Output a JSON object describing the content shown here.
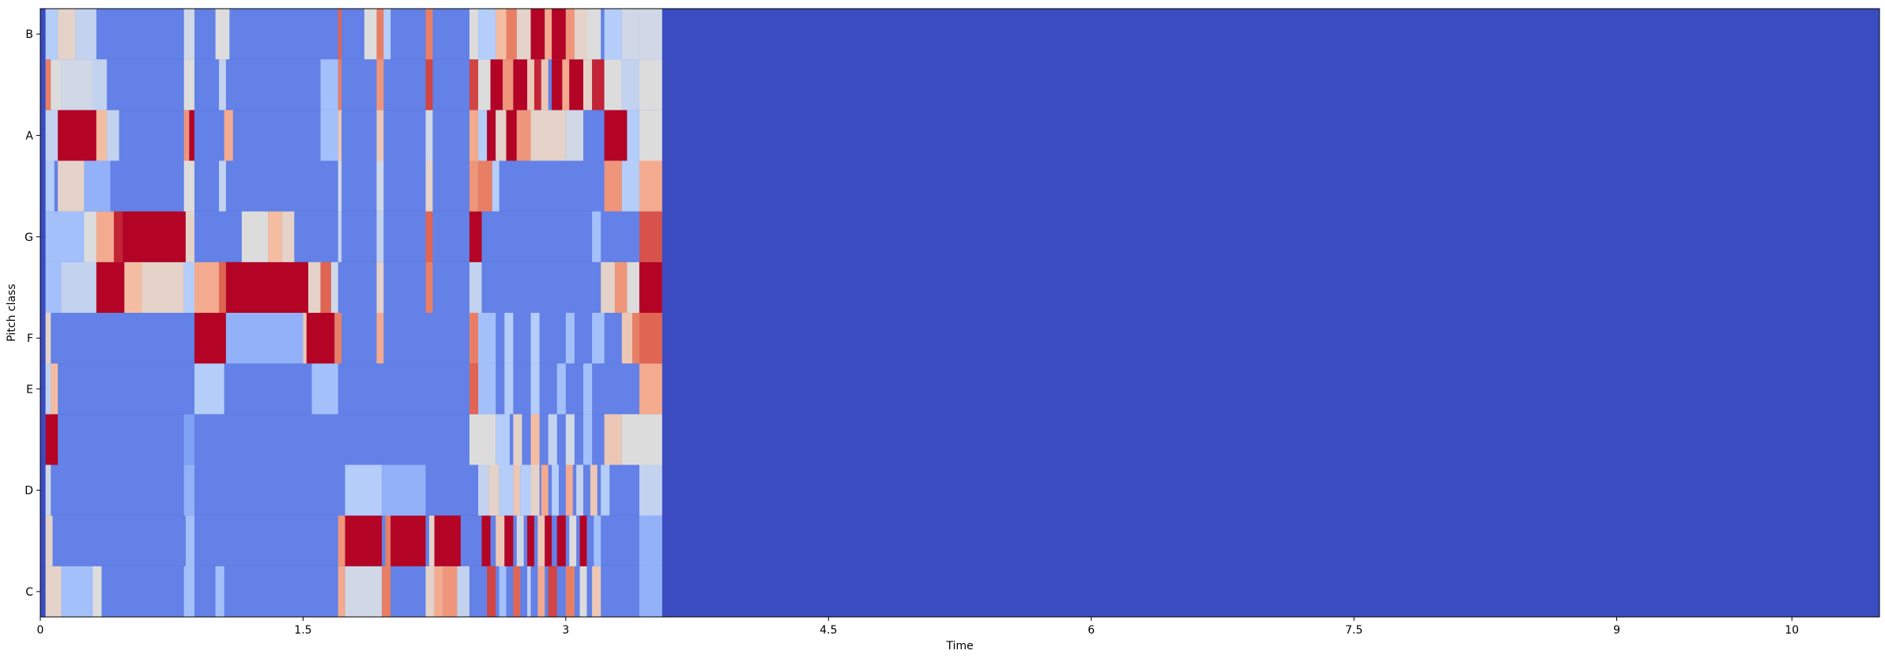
{
  "chart_data": {
    "type": "heatmap",
    "title": "",
    "xlabel": "Time",
    "ylabel": "Pitch class",
    "xlim": [
      0,
      10.5
    ],
    "x_ticks": [
      0,
      1.5,
      3,
      4.5,
      6,
      7.5,
      9,
      10
    ],
    "x_tick_labels": [
      "0",
      "1.5",
      "3",
      "4.5",
      "6",
      "7.5",
      "9",
      "10"
    ],
    "rows": [
      "C",
      "C#",
      "D",
      "D#",
      "E",
      "F",
      "F#",
      "G",
      "G#",
      "A",
      "A#",
      "B"
    ],
    "y_tick_labels": [
      {
        "row": "C",
        "label": "C"
      },
      {
        "row": "D",
        "label": "D"
      },
      {
        "row": "E",
        "label": "E"
      },
      {
        "row": "F",
        "label": "F"
      },
      {
        "row": "G",
        "label": "G"
      },
      {
        "row": "A",
        "label": "A"
      },
      {
        "row": "B",
        "label": "B"
      }
    ],
    "colormap": "coolwarm",
    "colormap_stops": [
      "#3b4cc0",
      "#7396f5",
      "#b0cbfc",
      "#dddcdc",
      "#f6b99b",
      "#e57058",
      "#b40426"
    ],
    "value_range": [
      0,
      1
    ],
    "content_end_time": 3.55,
    "background_value": 0.0,
    "cells": [
      {
        "row": "C",
        "spans": [
          [
            0.03,
            0.12,
            0.55
          ],
          [
            0.12,
            0.32,
            0.3
          ],
          [
            0.3,
            0.35,
            0.5
          ],
          [
            0.82,
            0.88,
            0.3
          ],
          [
            1.0,
            1.05,
            0.3
          ],
          [
            1.7,
            1.74,
            0.7
          ],
          [
            1.74,
            1.95,
            0.45
          ],
          [
            1.95,
            2.0,
            0.8
          ],
          [
            2.2,
            2.25,
            0.55
          ],
          [
            2.25,
            2.3,
            0.7
          ],
          [
            2.3,
            2.38,
            0.75
          ],
          [
            2.38,
            2.45,
            0.4
          ],
          [
            2.55,
            2.6,
            0.9
          ],
          [
            2.62,
            2.66,
            0.3
          ],
          [
            2.7,
            2.74,
            0.85
          ],
          [
            2.78,
            2.8,
            0.4
          ],
          [
            2.84,
            2.88,
            0.7
          ],
          [
            2.9,
            2.95,
            0.9
          ],
          [
            3.0,
            3.05,
            0.8
          ],
          [
            3.08,
            3.12,
            0.5
          ],
          [
            3.15,
            3.2,
            0.6
          ],
          [
            3.42,
            3.55,
            0.25
          ]
        ]
      },
      {
        "row": "C#",
        "spans": [
          [
            0.03,
            0.07,
            0.55
          ],
          [
            0.83,
            0.88,
            0.3
          ],
          [
            1.7,
            1.74,
            0.75
          ],
          [
            1.74,
            1.95,
            1.0
          ],
          [
            1.97,
            2.0,
            0.8
          ],
          [
            2.0,
            2.2,
            1.0
          ],
          [
            2.22,
            2.25,
            0.55
          ],
          [
            2.25,
            2.4,
            1.0
          ],
          [
            2.52,
            2.57,
            1.0
          ],
          [
            2.6,
            2.65,
            0.6
          ],
          [
            2.65,
            2.7,
            1.0
          ],
          [
            2.72,
            2.76,
            0.45
          ],
          [
            2.78,
            2.82,
            1.0
          ],
          [
            2.84,
            2.88,
            0.6
          ],
          [
            2.88,
            2.92,
            1.0
          ],
          [
            2.95,
            3.0,
            1.0
          ],
          [
            3.02,
            3.06,
            0.5
          ],
          [
            3.08,
            3.12,
            1.0
          ],
          [
            3.16,
            3.2,
            0.3
          ],
          [
            3.42,
            3.55,
            0.25
          ]
        ]
      },
      {
        "row": "D",
        "spans": [
          [
            0.03,
            0.06,
            0.45
          ],
          [
            0.82,
            0.88,
            0.25
          ],
          [
            1.74,
            1.95,
            0.35
          ],
          [
            1.95,
            2.2,
            0.25
          ],
          [
            2.5,
            2.56,
            0.4
          ],
          [
            2.56,
            2.62,
            0.55
          ],
          [
            2.62,
            2.7,
            0.35
          ],
          [
            2.7,
            2.74,
            0.6
          ],
          [
            2.74,
            2.8,
            0.35
          ],
          [
            2.8,
            2.85,
            0.55
          ],
          [
            2.86,
            2.9,
            0.7
          ],
          [
            2.92,
            2.96,
            0.35
          ],
          [
            3.0,
            3.04,
            0.7
          ],
          [
            3.06,
            3.1,
            0.4
          ],
          [
            3.14,
            3.18,
            0.6
          ],
          [
            3.2,
            3.25,
            0.35
          ],
          [
            3.42,
            3.55,
            0.4
          ]
        ]
      },
      {
        "row": "D#",
        "spans": [
          [
            0.03,
            0.1,
            1.0
          ],
          [
            0.82,
            0.88,
            0.2
          ],
          [
            2.45,
            2.6,
            0.5
          ],
          [
            2.6,
            2.68,
            0.35
          ],
          [
            2.7,
            2.75,
            0.55
          ],
          [
            2.8,
            2.85,
            0.65
          ],
          [
            2.9,
            2.95,
            0.4
          ],
          [
            3.0,
            3.05,
            0.45
          ],
          [
            3.1,
            3.15,
            0.3
          ],
          [
            3.22,
            3.32,
            0.6
          ],
          [
            3.32,
            3.55,
            0.5
          ]
        ]
      },
      {
        "row": "E",
        "spans": [
          [
            0.03,
            0.06,
            0.4
          ],
          [
            0.06,
            0.1,
            0.65
          ],
          [
            0.88,
            1.05,
            0.35
          ],
          [
            1.55,
            1.7,
            0.3
          ],
          [
            2.45,
            2.5,
            0.85
          ],
          [
            2.5,
            2.6,
            0.3
          ],
          [
            2.65,
            2.7,
            0.35
          ],
          [
            2.8,
            2.85,
            0.35
          ],
          [
            2.95,
            3.0,
            0.3
          ],
          [
            3.1,
            3.15,
            0.3
          ],
          [
            3.42,
            3.55,
            0.7
          ]
        ]
      },
      {
        "row": "F",
        "spans": [
          [
            0.03,
            0.06,
            0.55
          ],
          [
            0.88,
            1.06,
            1.0
          ],
          [
            1.06,
            1.5,
            0.25
          ],
          [
            1.5,
            1.52,
            0.6
          ],
          [
            1.52,
            1.68,
            1.0
          ],
          [
            1.68,
            1.72,
            0.8
          ],
          [
            1.92,
            1.96,
            0.7
          ],
          [
            2.45,
            2.5,
            0.8
          ],
          [
            2.5,
            2.6,
            0.3
          ],
          [
            2.65,
            2.7,
            0.35
          ],
          [
            2.8,
            2.85,
            0.35
          ],
          [
            3.0,
            3.05,
            0.3
          ],
          [
            3.15,
            3.22,
            0.3
          ],
          [
            3.32,
            3.38,
            0.6
          ],
          [
            3.38,
            3.42,
            0.8
          ],
          [
            3.42,
            3.55,
            0.85
          ]
        ]
      },
      {
        "row": "F#",
        "spans": [
          [
            0.03,
            0.12,
            0.3
          ],
          [
            0.12,
            0.32,
            0.4
          ],
          [
            0.32,
            0.48,
            1.0
          ],
          [
            0.48,
            0.58,
            0.65
          ],
          [
            0.58,
            0.82,
            0.55
          ],
          [
            0.82,
            0.88,
            0.35
          ],
          [
            0.88,
            1.02,
            0.7
          ],
          [
            1.02,
            1.06,
            0.85
          ],
          [
            1.06,
            1.53,
            1.0
          ],
          [
            1.53,
            1.6,
            0.55
          ],
          [
            1.6,
            1.66,
            0.85
          ],
          [
            1.66,
            1.7,
            0.45
          ],
          [
            1.92,
            1.96,
            0.55
          ],
          [
            2.2,
            2.24,
            0.8
          ],
          [
            2.45,
            2.52,
            0.4
          ],
          [
            3.2,
            3.28,
            0.55
          ],
          [
            3.28,
            3.35,
            0.75
          ],
          [
            3.35,
            3.42,
            0.5
          ],
          [
            3.42,
            3.55,
            1.0
          ]
        ]
      },
      {
        "row": "G",
        "spans": [
          [
            0.03,
            0.25,
            0.3
          ],
          [
            0.25,
            0.32,
            0.5
          ],
          [
            0.32,
            0.42,
            0.7
          ],
          [
            0.42,
            0.47,
            0.95
          ],
          [
            0.47,
            0.83,
            1.0
          ],
          [
            0.83,
            0.88,
            0.55
          ],
          [
            1.15,
            1.3,
            0.5
          ],
          [
            1.3,
            1.38,
            0.65
          ],
          [
            1.38,
            1.45,
            0.55
          ],
          [
            1.7,
            1.72,
            0.4
          ],
          [
            1.92,
            1.96,
            0.4
          ],
          [
            2.2,
            2.24,
            0.85
          ],
          [
            2.45,
            2.52,
            1.0
          ],
          [
            3.15,
            3.2,
            0.3
          ],
          [
            3.42,
            3.55,
            0.88
          ]
        ]
      },
      {
        "row": "G#",
        "spans": [
          [
            0.03,
            0.08,
            0.35
          ],
          [
            0.1,
            0.25,
            0.55
          ],
          [
            0.25,
            0.4,
            0.25
          ],
          [
            0.82,
            0.88,
            0.5
          ],
          [
            1.02,
            1.06,
            0.4
          ],
          [
            1.7,
            1.72,
            0.45
          ],
          [
            1.92,
            1.96,
            0.45
          ],
          [
            2.2,
            2.24,
            0.55
          ],
          [
            2.45,
            2.5,
            0.75
          ],
          [
            2.5,
            2.58,
            0.8
          ],
          [
            2.58,
            2.62,
            0.35
          ],
          [
            3.22,
            3.32,
            0.75
          ],
          [
            3.32,
            3.42,
            0.35
          ],
          [
            3.42,
            3.55,
            0.7
          ]
        ]
      },
      {
        "row": "A",
        "spans": [
          [
            0.03,
            0.1,
            0.4
          ],
          [
            0.1,
            0.32,
            1.0
          ],
          [
            0.32,
            0.38,
            0.65
          ],
          [
            0.38,
            0.45,
            0.4
          ],
          [
            0.82,
            0.85,
            0.75
          ],
          [
            0.85,
            0.88,
            1.0
          ],
          [
            1.05,
            1.1,
            0.7
          ],
          [
            1.6,
            1.7,
            0.3
          ],
          [
            1.7,
            1.72,
            0.6
          ],
          [
            1.92,
            1.96,
            0.6
          ],
          [
            2.2,
            2.24,
            0.45
          ],
          [
            2.45,
            2.5,
            0.7
          ],
          [
            2.5,
            2.55,
            0.35
          ],
          [
            2.55,
            2.6,
            1.0
          ],
          [
            2.6,
            2.66,
            0.55
          ],
          [
            2.66,
            2.72,
            1.0
          ],
          [
            2.72,
            2.8,
            0.75
          ],
          [
            2.8,
            3.0,
            0.55
          ],
          [
            3.0,
            3.1,
            0.45
          ],
          [
            3.22,
            3.35,
            1.0
          ],
          [
            3.35,
            3.42,
            0.35
          ],
          [
            3.42,
            3.55,
            0.5
          ]
        ]
      },
      {
        "row": "A#",
        "spans": [
          [
            0.03,
            0.06,
            0.8
          ],
          [
            0.06,
            0.12,
            0.5
          ],
          [
            0.12,
            0.3,
            0.45
          ],
          [
            0.3,
            0.38,
            0.4
          ],
          [
            0.82,
            0.88,
            0.5
          ],
          [
            1.02,
            1.06,
            0.4
          ],
          [
            1.6,
            1.7,
            0.3
          ],
          [
            1.7,
            1.72,
            0.8
          ],
          [
            1.92,
            1.96,
            0.75
          ],
          [
            2.2,
            2.24,
            0.9
          ],
          [
            2.45,
            2.5,
            0.9
          ],
          [
            2.5,
            2.57,
            0.5
          ],
          [
            2.57,
            2.64,
            1.0
          ],
          [
            2.64,
            2.7,
            0.75
          ],
          [
            2.7,
            2.78,
            1.0
          ],
          [
            2.78,
            2.82,
            0.6
          ],
          [
            2.82,
            2.86,
            0.95
          ],
          [
            2.86,
            2.9,
            0.6
          ],
          [
            2.92,
            2.98,
            1.0
          ],
          [
            2.98,
            3.02,
            0.7
          ],
          [
            3.02,
            3.1,
            1.0
          ],
          [
            3.1,
            3.15,
            0.55
          ],
          [
            3.15,
            3.22,
            0.95
          ],
          [
            3.22,
            3.32,
            0.5
          ],
          [
            3.32,
            3.42,
            0.4
          ],
          [
            3.42,
            3.55,
            0.5
          ]
        ]
      },
      {
        "row": "B",
        "spans": [
          [
            0.03,
            0.1,
            0.35
          ],
          [
            0.1,
            0.2,
            0.55
          ],
          [
            0.2,
            0.32,
            0.4
          ],
          [
            0.82,
            0.88,
            0.45
          ],
          [
            1.0,
            1.08,
            0.5
          ],
          [
            1.7,
            1.72,
            0.85
          ],
          [
            1.85,
            1.92,
            0.5
          ],
          [
            1.92,
            1.96,
            0.8
          ],
          [
            1.96,
            2.0,
            0.35
          ],
          [
            2.2,
            2.24,
            0.8
          ],
          [
            2.45,
            2.5,
            0.5
          ],
          [
            2.5,
            2.6,
            0.35
          ],
          [
            2.6,
            2.66,
            0.65
          ],
          [
            2.66,
            2.72,
            0.8
          ],
          [
            2.72,
            2.8,
            0.55
          ],
          [
            2.8,
            2.88,
            1.0
          ],
          [
            2.88,
            2.92,
            0.7
          ],
          [
            2.92,
            3.0,
            1.0
          ],
          [
            3.0,
            3.05,
            0.75
          ],
          [
            3.05,
            3.12,
            0.55
          ],
          [
            3.12,
            3.2,
            0.5
          ],
          [
            3.22,
            3.32,
            0.35
          ],
          [
            3.32,
            3.42,
            0.45
          ],
          [
            3.42,
            3.55,
            0.45
          ]
        ]
      }
    ]
  }
}
